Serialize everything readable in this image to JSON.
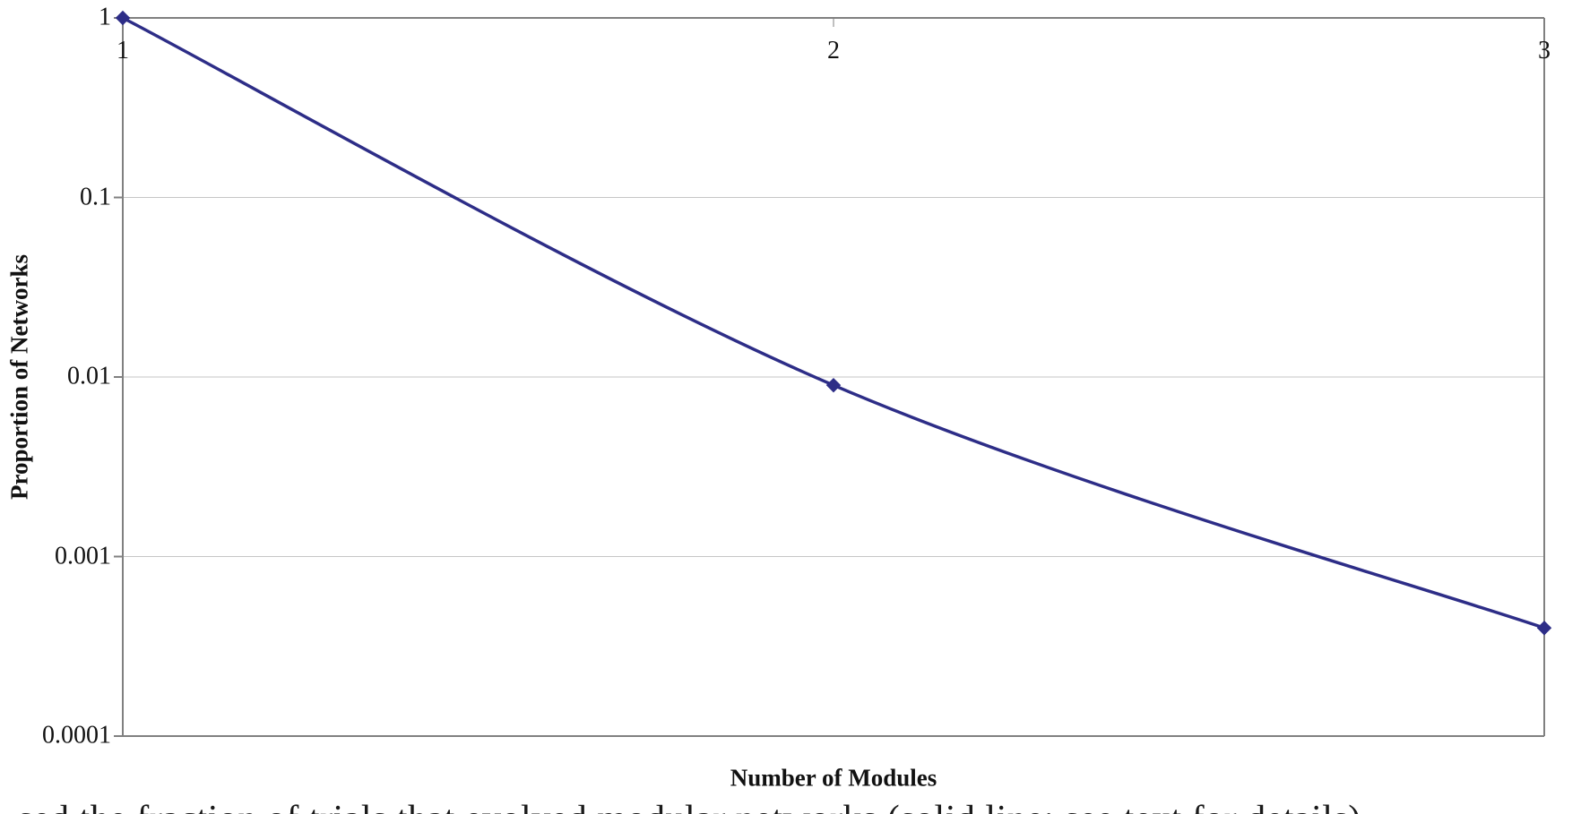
{
  "figure": {
    "clipped_caption": "sed the fraction of trials that evolved modular networks (solid line; see text for details)"
  },
  "chart_data": {
    "type": "line",
    "title": "",
    "xlabel": "Number of Modules",
    "ylabel": "Proportion of Networks",
    "categories": [
      "1",
      "2",
      "3"
    ],
    "x": [
      1,
      2,
      3
    ],
    "series": [
      {
        "name": "Proportion of Networks",
        "values": [
          1,
          0.009,
          0.0004
        ]
      }
    ],
    "y_scale": "log",
    "ylim": [
      0.0001,
      1
    ],
    "y_tick_labels": [
      "1",
      "0.1",
      "0.01",
      "0.001",
      "0.0001"
    ],
    "y_tick_values": [
      1,
      0.1,
      0.01,
      0.001,
      0.0001
    ],
    "x_axis_position": "top",
    "gridlines": "horizontal",
    "legend": "none",
    "marker": "diamond",
    "line_smoothing": true,
    "colors": {
      "line": "#2d2d87",
      "marker": "#2d2d87",
      "axis": "#808080",
      "grid": "#c6c6c6",
      "text": "#111111"
    }
  }
}
